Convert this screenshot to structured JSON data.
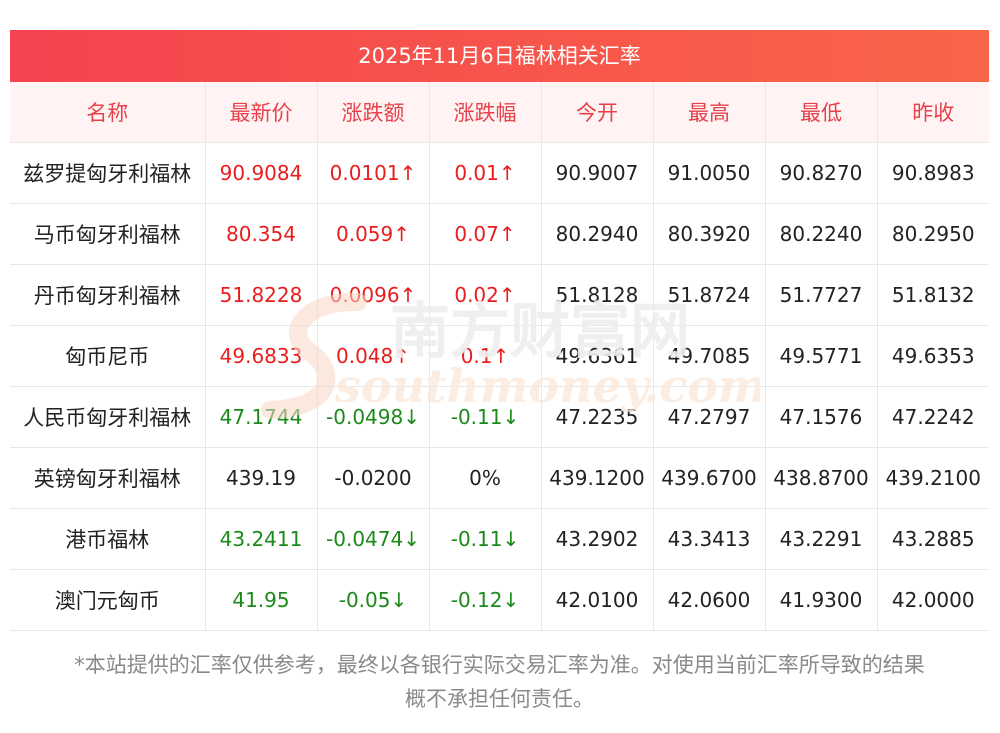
{
  "title": "2025年11月6日福林相关汇率",
  "columns": [
    "名称",
    "最新价",
    "涨跌额",
    "涨跌幅",
    "今开",
    "最高",
    "最低",
    "昨收"
  ],
  "rows": [
    {
      "name": "兹罗提匈牙利福林",
      "latest": "90.9084",
      "change": "0.0101↑",
      "pct": "0.01↑",
      "open": "90.9007",
      "high": "91.0050",
      "low": "90.8270",
      "prev": "90.8983",
      "trend": "up"
    },
    {
      "name": "马币匈牙利福林",
      "latest": "80.354",
      "change": "0.059↑",
      "pct": "0.07↑",
      "open": "80.2940",
      "high": "80.3920",
      "low": "80.2240",
      "prev": "80.2950",
      "trend": "up"
    },
    {
      "name": "丹币匈牙利福林",
      "latest": "51.8228",
      "change": "0.0096↑",
      "pct": "0.02↑",
      "open": "51.8128",
      "high": "51.8724",
      "low": "51.7727",
      "prev": "51.8132",
      "trend": "up"
    },
    {
      "name": "匈币尼币",
      "latest": "49.6833",
      "change": "0.048↑",
      "pct": "0.1↑",
      "open": "49.6361",
      "high": "49.7085",
      "low": "49.5771",
      "prev": "49.6353",
      "trend": "up"
    },
    {
      "name": "人民币匈牙利福林",
      "latest": "47.1744",
      "change": "-0.0498↓",
      "pct": "-0.11↓",
      "open": "47.2235",
      "high": "47.2797",
      "low": "47.1576",
      "prev": "47.2242",
      "trend": "down"
    },
    {
      "name": "英镑匈牙利福林",
      "latest": "439.19",
      "change": "-0.0200",
      "pct": "0%",
      "open": "439.1200",
      "high": "439.6700",
      "low": "438.8700",
      "prev": "439.2100",
      "trend": "flat"
    },
    {
      "name": "港币福林",
      "latest": "43.2411",
      "change": "-0.0474↓",
      "pct": "-0.11↓",
      "open": "43.2902",
      "high": "43.3413",
      "low": "43.2291",
      "prev": "43.2885",
      "trend": "down"
    },
    {
      "name": "澳门元匈币",
      "latest": "41.95",
      "change": "-0.05↓",
      "pct": "-0.12↓",
      "open": "42.0100",
      "high": "42.0600",
      "low": "41.9300",
      "prev": "42.0000",
      "trend": "down"
    }
  ],
  "footer_line1": "*本站提供的汇率仅供参考，最终以各银行实际交易汇率为准。对使用当前汇率所导致的结果",
  "footer_line2": "概不承担任何责任。",
  "watermark": {
    "cn": "南方财富网",
    "en": "southmoney.com"
  },
  "colors": {
    "up": "#e61e1e",
    "down": "#1b8a1b",
    "header_text": "#e8414b",
    "title_bg": "#f5434f"
  }
}
